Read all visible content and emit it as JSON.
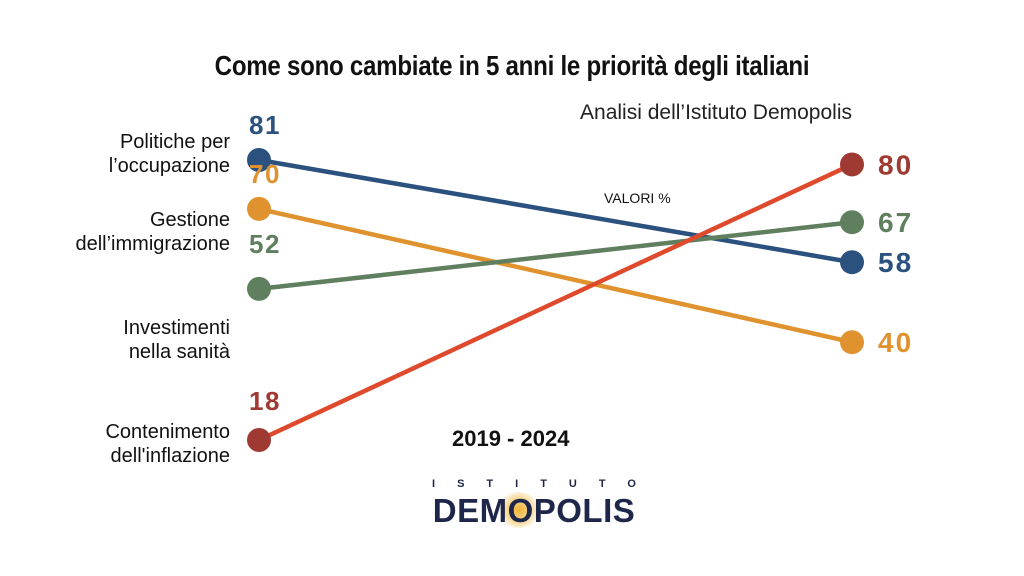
{
  "chart_data": {
    "type": "line",
    "title": "Come sono cambiate in 5 anni le priorità degli italiani",
    "subtitle": "Analisi dell’Istituto Demopolis",
    "unit_note": "VALORI %",
    "period_label": "2019 - 2024",
    "x": [
      "2019",
      "2024"
    ],
    "series": [
      {
        "name": "Politiche per\nl’occupazione",
        "values": [
          81,
          58
        ],
        "color": "#2b527f"
      },
      {
        "name": "Gestione\ndell’immigrazione",
        "values": [
          70,
          40
        ],
        "color": "#e0922f"
      },
      {
        "name": "Investimenti\nnella sanità",
        "values": [
          52,
          67
        ],
        "color": "#5f7f5f"
      },
      {
        "name": "Contenimento\ndell'inflazione",
        "values": [
          18,
          80
        ],
        "color": "#9e3a32"
      }
    ],
    "line_colors": {
      "inflazione_line": "#e04a2c"
    },
    "grid": false,
    "legend": "left labels"
  },
  "logo": {
    "top_text": "ISTITUTO",
    "main_text": "DEMOPOLIS",
    "color": "#1e2749"
  }
}
